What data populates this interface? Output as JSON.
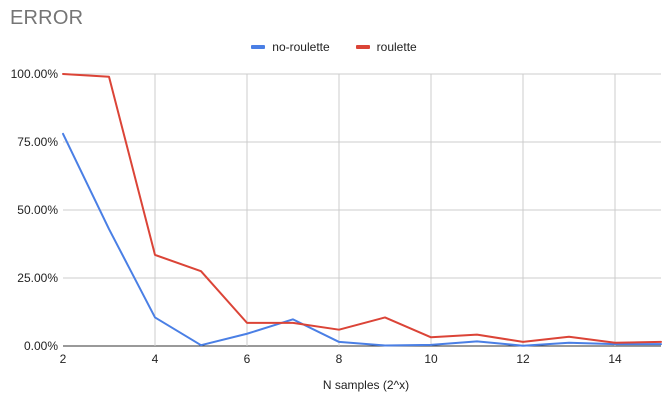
{
  "chart_data": {
    "type": "line",
    "title": "ERROR",
    "xlabel": "N samples (2^x)",
    "ylabel": "",
    "x": [
      2,
      3,
      4,
      5,
      6,
      7,
      8,
      9,
      10,
      11,
      12,
      13,
      14,
      15
    ],
    "xlim": [
      2,
      15
    ],
    "ylim": [
      0,
      100
    ],
    "x_ticks": [
      2,
      4,
      6,
      8,
      10,
      12,
      14
    ],
    "x_tick_labels": [
      "2",
      "4",
      "6",
      "8",
      "10",
      "12",
      "14"
    ],
    "y_ticks": [
      0,
      25,
      50,
      75,
      100
    ],
    "y_tick_labels": [
      "0.00%",
      "25.00%",
      "50.00%",
      "75.00%",
      "100.00%"
    ],
    "grid": true,
    "legend_position": "top",
    "series": [
      {
        "name": "no-roulette",
        "color": "#4a7fe5",
        "values": [
          78,
          43,
          10.5,
          0.3,
          4.5,
          9.8,
          1.5,
          0.2,
          0.4,
          1.7,
          0.1,
          1.2,
          0.7,
          0.7
        ]
      },
      {
        "name": "roulette",
        "color": "#db4437",
        "values": [
          100,
          99,
          33.5,
          27.5,
          8.5,
          8.5,
          6.0,
          10.5,
          3.2,
          4.2,
          1.5,
          3.4,
          1.2,
          1.5
        ]
      }
    ]
  }
}
